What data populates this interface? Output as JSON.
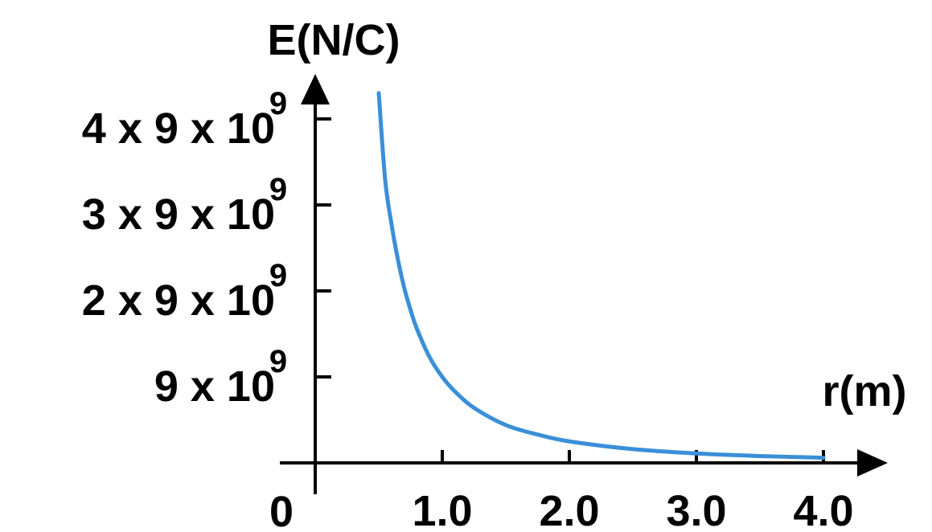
{
  "chart_data": {
    "type": "line",
    "ylabel": "E(N/C)",
    "xlabel": "r(m)",
    "origin_label": "0",
    "xlim": [
      0,
      4.0
    ],
    "ylim": [
      0,
      4.5
    ],
    "xticks": [
      {
        "value": 1.0,
        "label": "1.0"
      },
      {
        "value": 2.0,
        "label": "2.0"
      },
      {
        "value": 3.0,
        "label": "3.0"
      },
      {
        "value": 4.0,
        "label": "4.0"
      }
    ],
    "yticks": [
      {
        "value": 1,
        "base": "9 x 10",
        "exp": "9"
      },
      {
        "value": 2,
        "base": "2 x 9 x 10",
        "exp": "9"
      },
      {
        "value": 3,
        "base": "3 x 9 x 10",
        "exp": "9"
      },
      {
        "value": 4,
        "base": "4 x 9 x 10",
        "exp": "9"
      }
    ],
    "y_unit": "9 x 10^9 N/C",
    "series": [
      {
        "color": "#3a8fd8",
        "x": [
          0.5,
          0.55,
          0.6,
          0.65,
          0.7,
          0.75,
          0.8,
          0.9,
          1.0,
          1.1,
          1.25,
          1.5,
          1.75,
          2.0,
          2.5,
          3.0,
          3.5,
          4.0
        ],
        "y": [
          4.3,
          3.3,
          2.78,
          2.37,
          2.04,
          1.78,
          1.56,
          1.23,
          1.0,
          0.83,
          0.64,
          0.44,
          0.33,
          0.25,
          0.16,
          0.11,
          0.08,
          0.06
        ]
      }
    ]
  }
}
